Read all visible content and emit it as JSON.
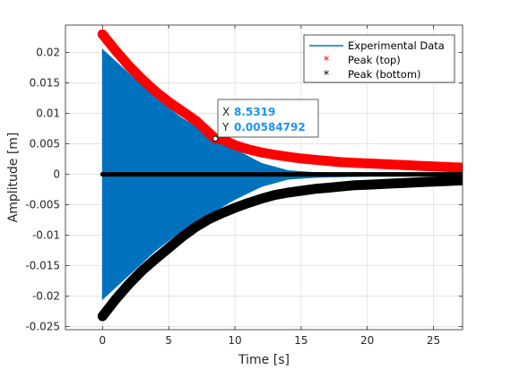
{
  "chart_data": {
    "type": "scatter",
    "title": "",
    "xlabel": "Time [s]",
    "ylabel": "Amplitude [m]",
    "xlim": [
      -2.8,
      27.2
    ],
    "ylim": [
      -0.0255,
      0.0245
    ],
    "grid": true,
    "legend_position": "top-right",
    "x_ticks": [
      0,
      5,
      10,
      15,
      20,
      25
    ],
    "x_tick_labels": [
      "0",
      "5",
      "10",
      "15",
      "20",
      "25"
    ],
    "y_ticks": [
      0.02,
      0.015,
      0.01,
      0.005,
      0,
      -0.005,
      -0.01,
      -0.015,
      -0.02,
      -0.025
    ],
    "y_tick_labels": [
      "0.02",
      "0.015",
      "0.01",
      "0.005",
      "0",
      "-0.005",
      "-0.01",
      "-0.015",
      "-0.02",
      "-0.025"
    ],
    "series": [
      {
        "name": "Experimental Data",
        "type": "line",
        "color": "#0072BD",
        "x_range": [
          0,
          27.2
        ],
        "envelope_x": [
          0,
          2,
          4,
          6,
          8,
          10,
          12,
          14,
          16,
          18,
          20,
          22,
          24,
          26,
          27.2
        ],
        "envelope_upper": [
          0.0205,
          0.0165,
          0.0125,
          0.0092,
          0.0066,
          0.0041,
          0.0018,
          0.0006,
          0.0003,
          0.0002,
          0.0002,
          0.0002,
          0.0002,
          0.0002,
          0.0002
        ],
        "envelope_lower": [
          -0.0205,
          -0.0165,
          -0.0125,
          -0.0092,
          -0.0066,
          -0.0041,
          -0.002,
          -0.0008,
          -0.0005,
          -0.0004,
          -0.0003,
          -0.0003,
          -0.0003,
          -0.0003,
          -0.0003
        ]
      },
      {
        "name": "Peak (top)",
        "type": "scatter",
        "marker": "*",
        "color": "#FF0000",
        "x": [
          0,
          1,
          2,
          3,
          4,
          5,
          6,
          7,
          8,
          8.5319,
          9,
          10,
          11,
          12,
          13,
          14,
          15,
          16,
          17,
          18,
          19,
          20,
          21,
          22,
          23,
          24,
          25,
          26,
          27.2
        ],
        "y": [
          0.023,
          0.0203,
          0.0178,
          0.0156,
          0.0136,
          0.0119,
          0.0104,
          0.0089,
          0.0069,
          0.00584792,
          0.0058,
          0.0048,
          0.0041,
          0.0036,
          0.0032,
          0.0029,
          0.0026,
          0.0024,
          0.0022,
          0.002,
          0.0019,
          0.0018,
          0.0017,
          0.0016,
          0.0015,
          0.0014,
          0.0013,
          0.0012,
          0.0011
        ]
      },
      {
        "name": "Peak (bottom)",
        "type": "scatter",
        "marker": "*",
        "color": "#000000",
        "x": [
          0,
          1,
          2,
          3,
          4,
          5,
          6,
          7,
          8,
          9,
          10,
          11,
          12,
          13,
          14,
          15,
          16,
          17,
          18,
          19,
          20,
          21,
          22,
          23,
          24,
          25,
          26,
          27.2
        ],
        "y": [
          -0.0233,
          -0.0205,
          -0.018,
          -0.0158,
          -0.0139,
          -0.0121,
          -0.0103,
          -0.0087,
          -0.0074,
          -0.0064,
          -0.0055,
          -0.0047,
          -0.004,
          -0.0034,
          -0.003,
          -0.0027,
          -0.0024,
          -0.0022,
          -0.002,
          -0.0018,
          -0.0017,
          -0.0016,
          -0.0015,
          -0.0014,
          -0.0013,
          -0.0012,
          -0.0011,
          -0.001
        ]
      },
      {
        "name": "",
        "type": "scatter",
        "marker": "*",
        "color": "#000000",
        "x": [
          0,
          2,
          4,
          6,
          8,
          10,
          12,
          14,
          16,
          18,
          20,
          22,
          24,
          26,
          27.2
        ],
        "y": [
          0,
          0,
          0,
          0,
          0,
          0,
          0,
          0,
          0,
          0,
          0,
          0,
          0,
          0,
          0
        ]
      }
    ],
    "datatip": {
      "x_label": "X",
      "x_value": "8.5319",
      "y_label": "Y",
      "y_value": "0.00584792",
      "point": [
        8.5319,
        0.00584792
      ]
    }
  }
}
